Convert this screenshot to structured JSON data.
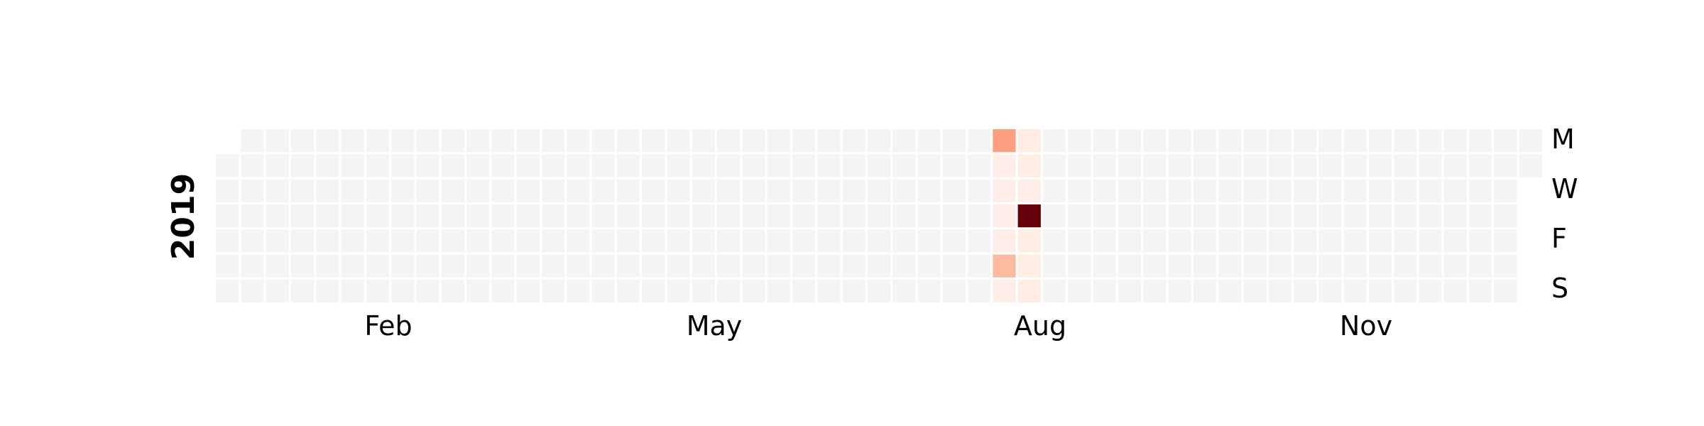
{
  "chart_data": {
    "type": "heatmap",
    "title": "",
    "year": "2019",
    "week_start": "Monday",
    "month_ticks": [
      "Feb",
      "May",
      "Aug",
      "Nov"
    ],
    "day_ticks": [
      "M",
      "W",
      "F",
      "S"
    ],
    "empty_color": "#f4f4f4",
    "colormap": "Reds",
    "values": [
      {
        "date": "2019-08-05",
        "value": 40
      },
      {
        "date": "2019-08-06",
        "value": 3
      },
      {
        "date": "2019-08-07",
        "value": 3
      },
      {
        "date": "2019-08-08",
        "value": 3
      },
      {
        "date": "2019-08-09",
        "value": 3
      },
      {
        "date": "2019-08-10",
        "value": 25
      },
      {
        "date": "2019-08-11",
        "value": 3
      },
      {
        "date": "2019-08-12",
        "value": 4
      },
      {
        "date": "2019-08-13",
        "value": 4
      },
      {
        "date": "2019-08-14",
        "value": 3
      },
      {
        "date": "2019-08-15",
        "value": 100
      },
      {
        "date": "2019-08-16",
        "value": 4
      },
      {
        "date": "2019-08-17",
        "value": 4
      },
      {
        "date": "2019-08-18",
        "value": 4
      }
    ],
    "color_scale": [
      {
        "value": 0,
        "color": "#fff5f0"
      },
      {
        "value": 25,
        "color": "#fcbba1"
      },
      {
        "value": 40,
        "color": "#fb9f80"
      },
      {
        "value": 70,
        "color": "#ef3b2c"
      },
      {
        "value": 100,
        "color": "#67000d"
      }
    ]
  }
}
